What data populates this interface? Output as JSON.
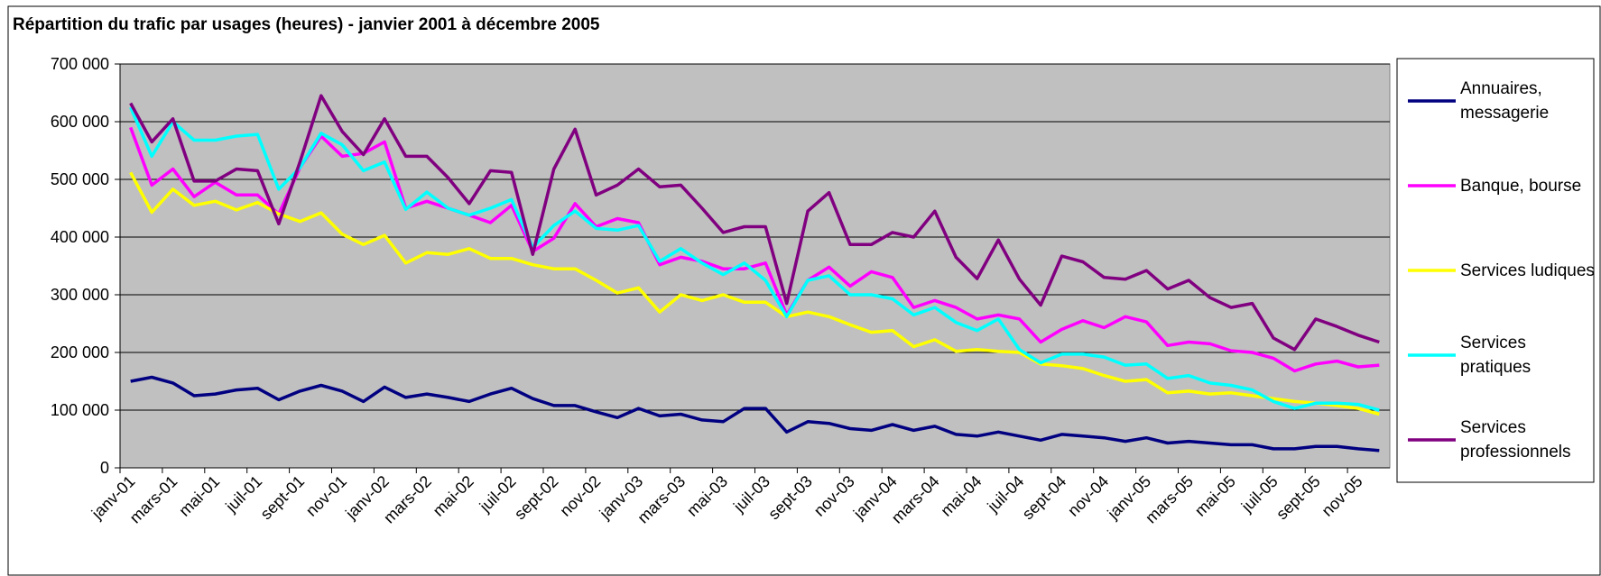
{
  "chart_data": {
    "type": "line",
    "title": "Répartition du trafic par usages (heures) - janvier 2001 à décembre 2005",
    "categories": [
      "janv-01",
      null,
      "mars-01",
      null,
      "mai-01",
      null,
      "juil-01",
      null,
      "sept-01",
      null,
      "nov-01",
      null,
      "janv-02",
      null,
      "mars-02",
      null,
      "mai-02",
      null,
      "juil-02",
      null,
      "sept-02",
      null,
      "nov-02",
      null,
      "janv-03",
      null,
      "mars-03",
      null,
      "mai-03",
      null,
      "juil-03",
      null,
      "sept-03",
      null,
      "nov-03",
      null,
      "janv-04",
      null,
      "mars-04",
      null,
      "mai-04",
      null,
      "juil-04",
      null,
      "sept-04",
      null,
      "nov-04",
      null,
      "janv-05",
      null,
      "mars-05",
      null,
      "mai-05",
      null,
      "juil-05",
      null,
      "sept-05",
      null,
      "nov-05",
      null
    ],
    "series": [
      {
        "name": "Annuaires, messagerie",
        "color": "#000080",
        "values": [
          150000,
          157000,
          147000,
          125000,
          128000,
          135000,
          138000,
          118000,
          133000,
          143000,
          133000,
          115000,
          140000,
          122000,
          128000,
          122000,
          115000,
          128000,
          138000,
          120000,
          108000,
          108000,
          97000,
          87000,
          103000,
          90000,
          93000,
          83000,
          80000,
          103000,
          103000,
          62000,
          80000,
          77000,
          68000,
          65000,
          75000,
          65000,
          72000,
          58000,
          55000,
          62000,
          55000,
          48000,
          58000,
          55000,
          52000,
          46000,
          52000,
          43000,
          46000,
          43000,
          40000,
          40000,
          33000,
          33000,
          37000,
          37000,
          33000,
          30000
        ]
      },
      {
        "name": "Banque, bourse",
        "color": "#ff00ff",
        "values": [
          590000,
          490000,
          518000,
          470000,
          495000,
          473000,
          473000,
          440000,
          520000,
          575000,
          540000,
          545000,
          565000,
          450000,
          462000,
          450000,
          438000,
          425000,
          455000,
          375000,
          398000,
          458000,
          418000,
          432000,
          425000,
          352000,
          365000,
          358000,
          345000,
          345000,
          355000,
          265000,
          325000,
          348000,
          315000,
          340000,
          330000,
          278000,
          290000,
          278000,
          258000,
          265000,
          258000,
          218000,
          240000,
          255000,
          243000,
          262000,
          253000,
          212000,
          218000,
          215000,
          203000,
          200000,
          190000,
          168000,
          180000,
          185000,
          175000,
          178000
        ]
      },
      {
        "name": "Services ludiques",
        "color": "#ffff00",
        "values": [
          512000,
          443000,
          483000,
          455000,
          462000,
          447000,
          460000,
          440000,
          427000,
          442000,
          405000,
          387000,
          403000,
          355000,
          373000,
          370000,
          380000,
          363000,
          363000,
          352000,
          345000,
          345000,
          325000,
          303000,
          312000,
          270000,
          300000,
          290000,
          300000,
          287000,
          287000,
          262000,
          270000,
          262000,
          248000,
          235000,
          238000,
          210000,
          222000,
          202000,
          205000,
          202000,
          200000,
          180000,
          177000,
          172000,
          160000,
          150000,
          153000,
          130000,
          133000,
          128000,
          130000,
          125000,
          120000,
          115000,
          112000,
          108000,
          103000,
          93000
        ]
      },
      {
        "name": "Services pratiques",
        "color": "#00ffff",
        "values": [
          625000,
          540000,
          600000,
          568000,
          568000,
          575000,
          578000,
          483000,
          520000,
          580000,
          560000,
          515000,
          530000,
          448000,
          478000,
          450000,
          438000,
          450000,
          465000,
          382000,
          420000,
          445000,
          415000,
          412000,
          420000,
          358000,
          380000,
          355000,
          335000,
          355000,
          325000,
          262000,
          325000,
          333000,
          300000,
          300000,
          293000,
          265000,
          278000,
          252000,
          238000,
          258000,
          205000,
          182000,
          197000,
          197000,
          192000,
          178000,
          180000,
          155000,
          160000,
          147000,
          143000,
          135000,
          115000,
          103000,
          112000,
          112000,
          110000,
          100000
        ]
      },
      {
        "name": "Services professionnels",
        "color": "#800080",
        "values": [
          632000,
          565000,
          605000,
          497000,
          497000,
          518000,
          515000,
          423000,
          530000,
          645000,
          583000,
          543000,
          605000,
          540000,
          540000,
          503000,
          458000,
          515000,
          512000,
          370000,
          518000,
          587000,
          473000,
          490000,
          518000,
          487000,
          490000,
          450000,
          408000,
          418000,
          418000,
          285000,
          445000,
          477000,
          387000,
          387000,
          408000,
          400000,
          445000,
          365000,
          328000,
          395000,
          327000,
          282000,
          367000,
          357000,
          330000,
          327000,
          342000,
          310000,
          325000,
          295000,
          278000,
          285000,
          225000,
          205000,
          258000,
          245000,
          230000,
          218000
        ]
      }
    ],
    "ylim": [
      0,
      700000
    ],
    "yticks": [
      0,
      {
        "value": 100000,
        "label": "100 000"
      },
      {
        "value": 200000,
        "label": "200 000"
      },
      {
        "value": 300000,
        "label": "300 000"
      },
      {
        "value": 400000,
        "label": "400 000"
      },
      {
        "value": 500000,
        "label": "500 000"
      },
      {
        "value": 600000,
        "label": "600 000"
      },
      {
        "value": 700000,
        "label": "700 000"
      }
    ],
    "grid": true,
    "legend": "right"
  }
}
